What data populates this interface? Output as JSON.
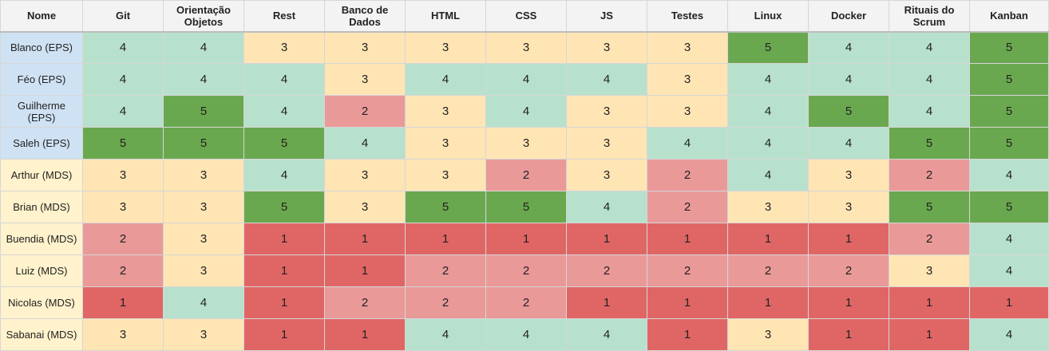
{
  "header": {
    "nome": "Nome",
    "columns": [
      "Git",
      "Orientação Objetos",
      "Rest",
      "Banco de Dados",
      "HTML",
      "CSS",
      "JS",
      "Testes",
      "Linux",
      "Docker",
      "Rituais do Scrum",
      "Kanban"
    ]
  },
  "rows": [
    {
      "name": "Blanco (EPS)",
      "group": "EPS",
      "scores": [
        4,
        4,
        3,
        3,
        3,
        3,
        3,
        3,
        5,
        4,
        4,
        5
      ]
    },
    {
      "name": "Féo (EPS)",
      "group": "EPS",
      "scores": [
        4,
        4,
        4,
        3,
        4,
        4,
        4,
        3,
        4,
        4,
        4,
        5
      ]
    },
    {
      "name": "Guilherme (EPS)",
      "group": "EPS",
      "scores": [
        4,
        5,
        4,
        2,
        3,
        4,
        3,
        3,
        4,
        5,
        4,
        5
      ]
    },
    {
      "name": "Saleh (EPS)",
      "group": "EPS",
      "scores": [
        5,
        5,
        5,
        4,
        3,
        3,
        3,
        4,
        4,
        4,
        5,
        5
      ]
    },
    {
      "name": "Arthur (MDS)",
      "group": "MDS",
      "scores": [
        3,
        3,
        4,
        3,
        3,
        2,
        3,
        2,
        4,
        3,
        2,
        4
      ]
    },
    {
      "name": "Brian (MDS)",
      "group": "MDS",
      "scores": [
        3,
        3,
        5,
        3,
        5,
        5,
        4,
        2,
        3,
        3,
        5,
        5
      ]
    },
    {
      "name": "Buendia (MDS)",
      "group": "MDS",
      "scores": [
        2,
        3,
        1,
        1,
        1,
        1,
        1,
        1,
        1,
        1,
        2,
        4
      ]
    },
    {
      "name": "Luiz (MDS)",
      "group": "MDS",
      "scores": [
        2,
        3,
        1,
        1,
        2,
        2,
        2,
        2,
        2,
        2,
        3,
        4
      ]
    },
    {
      "name": "Nicolas (MDS)",
      "group": "MDS",
      "scores": [
        1,
        4,
        1,
        2,
        2,
        2,
        1,
        1,
        1,
        1,
        1,
        1
      ]
    },
    {
      "name": "Sabanai (MDS)",
      "group": "MDS",
      "scores": [
        3,
        3,
        1,
        1,
        4,
        4,
        4,
        1,
        3,
        1,
        1,
        4
      ]
    }
  ],
  "colors": {
    "score_1": "#e06666",
    "score_2": "#ea9999",
    "score_3": "#ffe5b4",
    "score_4": "#b7e1cd",
    "score_5": "#6aa84f",
    "name_eps": "#cfe2f3",
    "name_mds": "#fff2cc"
  }
}
